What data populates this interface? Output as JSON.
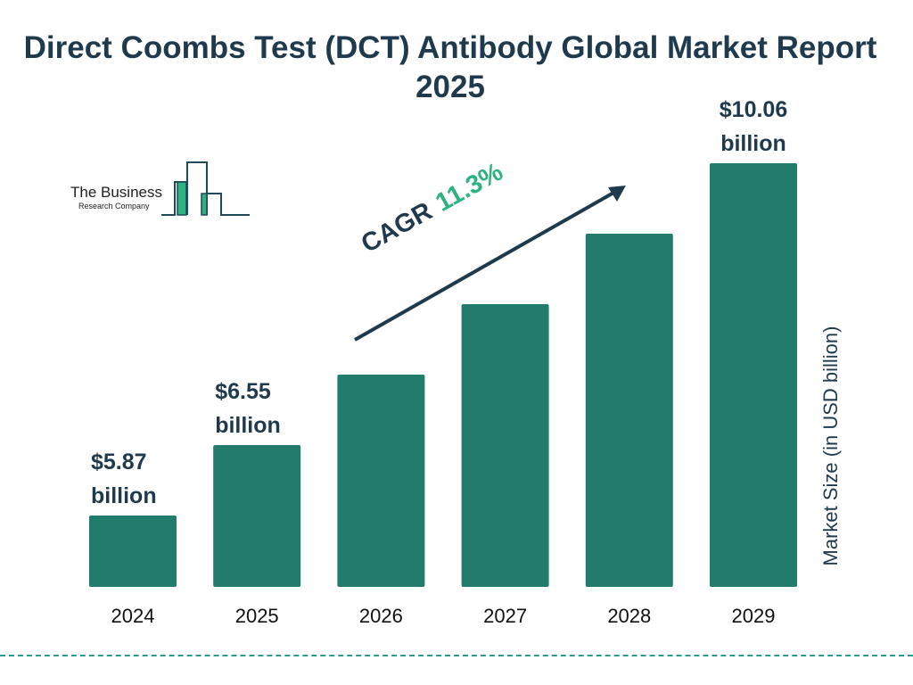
{
  "title": "Direct Coombs Test (DCT) Antibody Global Market Report 2025",
  "logo": {
    "line1": "The Business",
    "line2": "Research Company",
    "text": "The Business Research Company"
  },
  "cagr": {
    "label": "CAGR",
    "value": "11.3%"
  },
  "colors": {
    "bar": "#217c6c",
    "title": "#1f3a4d",
    "cagr": "#2db37f",
    "divider": "#2a9d8f"
  },
  "chart_data": {
    "type": "bar",
    "title": "Direct Coombs Test (DCT) Antibody Global Market Report 2025",
    "categories": [
      "2024",
      "2025",
      "2026",
      "2027",
      "2028",
      "2029"
    ],
    "values": [
      5.87,
      6.55,
      7.29,
      8.11,
      9.03,
      10.06
    ],
    "data_labels": [
      "$5.87 billion",
      "$6.55 billion",
      "",
      "",
      "",
      "$10.06 billion"
    ],
    "ylabel": "Market Size (in USD billion)",
    "xlabel": "",
    "grid": false,
    "legend": "none"
  }
}
